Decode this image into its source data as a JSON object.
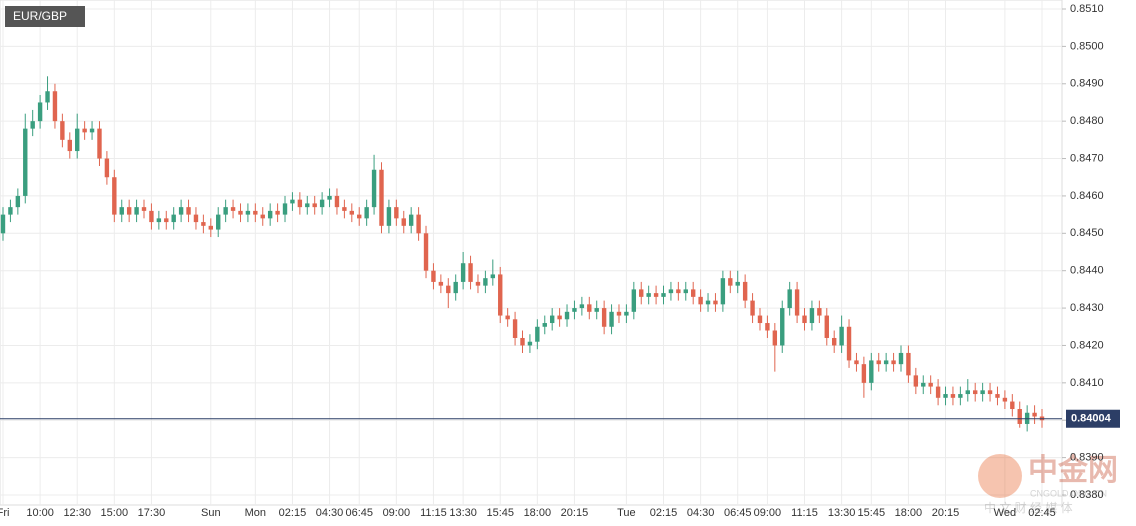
{
  "chart_data": {
    "type": "candlestick",
    "title": "EUR/GBP",
    "categories": [
      "Fri",
      null,
      null,
      null,
      null,
      "10:00",
      null,
      null,
      null,
      null,
      "12:30",
      null,
      null,
      null,
      null,
      "15:00",
      null,
      null,
      null,
      null,
      "17:30",
      null,
      null,
      null,
      null,
      null,
      null,
      null,
      "Sun",
      null,
      null,
      null,
      null,
      null,
      "Mon",
      null,
      null,
      null,
      null,
      "02:15",
      null,
      null,
      null,
      null,
      "04:30",
      null,
      null,
      null,
      "06:45",
      null,
      null,
      null,
      null,
      "09:00",
      null,
      null,
      null,
      null,
      "11:15",
      null,
      null,
      null,
      "13:30",
      null,
      null,
      null,
      null,
      "15:45",
      null,
      null,
      null,
      null,
      "18:00",
      null,
      null,
      null,
      null,
      "20:15",
      null,
      null,
      null,
      null,
      null,
      null,
      "Tue",
      null,
      null,
      null,
      null,
      "02:15",
      null,
      null,
      null,
      null,
      "04:30",
      null,
      null,
      null,
      null,
      "06:45",
      null,
      null,
      null,
      "09:00",
      null,
      null,
      null,
      null,
      "11:15",
      null,
      null,
      null,
      null,
      "13:30",
      null,
      null,
      null,
      "15:45",
      null,
      null,
      null,
      null,
      "18:00",
      null,
      null,
      null,
      null,
      "20:15",
      null,
      null,
      null,
      null,
      null,
      null,
      null,
      "Wed",
      null,
      null,
      null,
      null,
      "02:45"
    ],
    "open": [
      0.845,
      0.8455,
      0.8457,
      0.846,
      0.8478,
      0.848,
      0.8485,
      0.8488,
      0.848,
      0.8475,
      0.8472,
      0.8478,
      0.8477,
      0.8478,
      0.847,
      0.8465,
      0.8455,
      0.8457,
      0.8455,
      0.8457,
      0.8456,
      0.8453,
      0.8454,
      0.8453,
      0.8455,
      0.8457,
      0.8455,
      0.8453,
      0.8452,
      0.8451,
      0.8455,
      0.8457,
      0.8456,
      0.8455,
      0.8456,
      0.8455,
      0.8454,
      0.8456,
      0.8455,
      0.8458,
      0.8459,
      0.8457,
      0.8458,
      0.8457,
      0.8459,
      0.846,
      0.8457,
      0.8456,
      0.8455,
      0.8454,
      0.8457,
      0.8467,
      0.8452,
      0.8457,
      0.8454,
      0.8452,
      0.8455,
      0.845,
      0.844,
      0.8437,
      0.8436,
      0.8434,
      0.8437,
      0.8442,
      0.8437,
      0.8436,
      0.8438,
      0.8439,
      0.8428,
      0.8427,
      0.8422,
      0.842,
      0.8421,
      0.8425,
      0.8426,
      0.8428,
      0.8427,
      0.8429,
      0.843,
      0.8431,
      0.8429,
      0.843,
      0.8425,
      0.8429,
      0.8428,
      0.8429,
      0.8435,
      0.8433,
      0.8434,
      0.8433,
      0.8434,
      0.8435,
      0.8434,
      0.8435,
      0.8433,
      0.8431,
      0.8432,
      0.8431,
      0.8438,
      0.8436,
      0.8437,
      0.8432,
      0.8428,
      0.8426,
      0.8424,
      0.842,
      0.843,
      0.8435,
      0.8428,
      0.8426,
      0.843,
      0.8428,
      0.8422,
      0.842,
      0.8425,
      0.8416,
      0.8415,
      0.841,
      0.8416,
      0.8415,
      0.8416,
      0.8415,
      0.8418,
      0.8412,
      0.8409,
      0.841,
      0.8409,
      0.8406,
      0.8407,
      0.8406,
      0.8407,
      0.8408,
      0.8407,
      0.8408,
      0.8407,
      0.8406,
      0.8405,
      0.8403,
      0.8399,
      0.8402,
      0.8401
    ],
    "high": [
      0.8457,
      0.8459,
      0.8462,
      0.8482,
      0.8483,
      0.8487,
      0.8492,
      0.849,
      0.8482,
      0.8477,
      0.8482,
      0.848,
      0.848,
      0.848,
      0.8472,
      0.8467,
      0.8459,
      0.8459,
      0.8459,
      0.8459,
      0.8458,
      0.8456,
      0.8456,
      0.8457,
      0.8459,
      0.8459,
      0.8457,
      0.8455,
      0.8454,
      0.8457,
      0.8459,
      0.8459,
      0.8458,
      0.8458,
      0.8458,
      0.8457,
      0.8458,
      0.8458,
      0.846,
      0.8461,
      0.8461,
      0.846,
      0.846,
      0.8461,
      0.8462,
      0.8462,
      0.8459,
      0.8458,
      0.8457,
      0.8459,
      0.8471,
      0.8469,
      0.8459,
      0.8459,
      0.8456,
      0.8457,
      0.8457,
      0.8452,
      0.8442,
      0.8439,
      0.8438,
      0.8439,
      0.8445,
      0.8444,
      0.8439,
      0.844,
      0.8443,
      0.8441,
      0.843,
      0.8429,
      0.8424,
      0.8423,
      0.8427,
      0.8428,
      0.843,
      0.843,
      0.8431,
      0.8432,
      0.8433,
      0.8433,
      0.8432,
      0.8432,
      0.8431,
      0.8431,
      0.8431,
      0.8437,
      0.8437,
      0.8436,
      0.8436,
      0.8436,
      0.8437,
      0.8437,
      0.8437,
      0.8437,
      0.8435,
      0.8434,
      0.8434,
      0.844,
      0.844,
      0.844,
      0.8439,
      0.8434,
      0.843,
      0.8428,
      0.8426,
      0.8432,
      0.8437,
      0.8437,
      0.843,
      0.8432,
      0.8432,
      0.843,
      0.8424,
      0.8428,
      0.8427,
      0.8418,
      0.8417,
      0.8418,
      0.8418,
      0.8418,
      0.8418,
      0.842,
      0.842,
      0.8414,
      0.8412,
      0.8412,
      0.8411,
      0.8409,
      0.8409,
      0.8409,
      0.8411,
      0.841,
      0.841,
      0.841,
      0.8409,
      0.8408,
      0.8407,
      0.8405,
      0.8404,
      0.8404,
      0.8403
    ],
    "low": [
      0.8448,
      0.8453,
      0.8455,
      0.8458,
      0.8476,
      0.8478,
      0.8483,
      0.8478,
      0.8473,
      0.847,
      0.847,
      0.8475,
      0.8475,
      0.8468,
      0.8463,
      0.8453,
      0.8453,
      0.8453,
      0.8453,
      0.8454,
      0.8451,
      0.8451,
      0.8451,
      0.8451,
      0.8453,
      0.8453,
      0.8451,
      0.845,
      0.8449,
      0.8449,
      0.8453,
      0.8454,
      0.8453,
      0.8453,
      0.8453,
      0.8452,
      0.8452,
      0.8453,
      0.8453,
      0.8456,
      0.8455,
      0.8455,
      0.8455,
      0.8455,
      0.8457,
      0.8455,
      0.8454,
      0.8453,
      0.8452,
      0.8452,
      0.8455,
      0.845,
      0.845,
      0.8452,
      0.845,
      0.845,
      0.8448,
      0.8438,
      0.8435,
      0.8434,
      0.843,
      0.8432,
      0.8435,
      0.8435,
      0.8434,
      0.8434,
      0.8436,
      0.8426,
      0.8425,
      0.842,
      0.8418,
      0.8418,
      0.8419,
      0.8423,
      0.8424,
      0.8425,
      0.8425,
      0.8427,
      0.8428,
      0.8427,
      0.8427,
      0.8423,
      0.8423,
      0.8426,
      0.8426,
      0.8427,
      0.8431,
      0.8431,
      0.8431,
      0.8431,
      0.8432,
      0.8432,
      0.8432,
      0.8431,
      0.8429,
      0.8429,
      0.8429,
      0.8429,
      0.8434,
      0.8434,
      0.843,
      0.8426,
      0.8424,
      0.8422,
      0.8413,
      0.8418,
      0.8428,
      0.8426,
      0.8424,
      0.8424,
      0.8426,
      0.842,
      0.8418,
      0.8418,
      0.8414,
      0.8413,
      0.8406,
      0.8408,
      0.8413,
      0.8413,
      0.8413,
      0.8413,
      0.841,
      0.8407,
      0.8407,
      0.8407,
      0.8404,
      0.8404,
      0.8404,
      0.8404,
      0.8405,
      0.8405,
      0.8405,
      0.8405,
      0.8404,
      0.8403,
      0.8401,
      0.8398,
      0.8397,
      0.8399,
      0.8398
    ],
    "close": [
      0.8455,
      0.8457,
      0.846,
      0.8478,
      0.848,
      0.8485,
      0.8488,
      0.848,
      0.8475,
      0.8472,
      0.8478,
      0.8477,
      0.8478,
      0.847,
      0.8465,
      0.8455,
      0.8457,
      0.8455,
      0.8457,
      0.8456,
      0.8453,
      0.8454,
      0.8453,
      0.8455,
      0.8457,
      0.8455,
      0.8453,
      0.8452,
      0.8451,
      0.8455,
      0.8457,
      0.8456,
      0.8455,
      0.8456,
      0.8455,
      0.8454,
      0.8456,
      0.8455,
      0.8458,
      0.8459,
      0.8457,
      0.8458,
      0.8457,
      0.8459,
      0.846,
      0.8457,
      0.8456,
      0.8455,
      0.8454,
      0.8457,
      0.8467,
      0.8452,
      0.8457,
      0.8454,
      0.8452,
      0.8455,
      0.845,
      0.844,
      0.8437,
      0.8436,
      0.8434,
      0.8437,
      0.8442,
      0.8437,
      0.8436,
      0.8438,
      0.8439,
      0.8428,
      0.8427,
      0.8422,
      0.842,
      0.8421,
      0.8425,
      0.8426,
      0.8428,
      0.8427,
      0.8429,
      0.843,
      0.8431,
      0.8429,
      0.843,
      0.8425,
      0.8429,
      0.8428,
      0.8429,
      0.8435,
      0.8433,
      0.8434,
      0.8433,
      0.8434,
      0.8435,
      0.8434,
      0.8435,
      0.8433,
      0.8431,
      0.8432,
      0.8431,
      0.8438,
      0.8436,
      0.8437,
      0.8432,
      0.8428,
      0.8426,
      0.8424,
      0.842,
      0.843,
      0.8435,
      0.8428,
      0.8426,
      0.843,
      0.8428,
      0.8422,
      0.842,
      0.8425,
      0.8416,
      0.8415,
      0.841,
      0.8416,
      0.8415,
      0.8416,
      0.8415,
      0.8418,
      0.8412,
      0.8409,
      0.841,
      0.8409,
      0.8406,
      0.8407,
      0.8406,
      0.8407,
      0.8408,
      0.8407,
      0.8408,
      0.8407,
      0.8406,
      0.8405,
      0.8403,
      0.8399,
      0.8402,
      0.8401,
      0.84
    ],
    "up_color": "#3a9e7f",
    "down_color": "#e0654f",
    "ylim": [
      0.838,
      0.851
    ],
    "yticks": [
      {
        "value": 0.838,
        "label": "0.8380"
      },
      {
        "value": 0.839,
        "label": "0.8390"
      },
      {
        "value": 0.84,
        "label": "0.8400"
      },
      {
        "value": 0.841,
        "label": "0.8410"
      },
      {
        "value": 0.842,
        "label": "0.8420"
      },
      {
        "value": 0.843,
        "label": "0.8430"
      },
      {
        "value": 0.844,
        "label": "0.8440"
      },
      {
        "value": 0.845,
        "label": "0.8450"
      },
      {
        "value": 0.846,
        "label": "0.8460"
      },
      {
        "value": 0.847,
        "label": "0.8470"
      },
      {
        "value": 0.848,
        "label": "0.8480"
      },
      {
        "value": 0.849,
        "label": "0.8490"
      },
      {
        "value": 0.85,
        "label": "0.8500"
      },
      {
        "value": 0.851,
        "label": "0.8510"
      }
    ],
    "grid": true,
    "last_price": 0.84004,
    "last_price_color": "#2c3e66",
    "watermark": {
      "brand": "中金网",
      "url": "CNGOLD.ORG.CN",
      "tagline": "中 文 财 经 媒 体"
    }
  }
}
